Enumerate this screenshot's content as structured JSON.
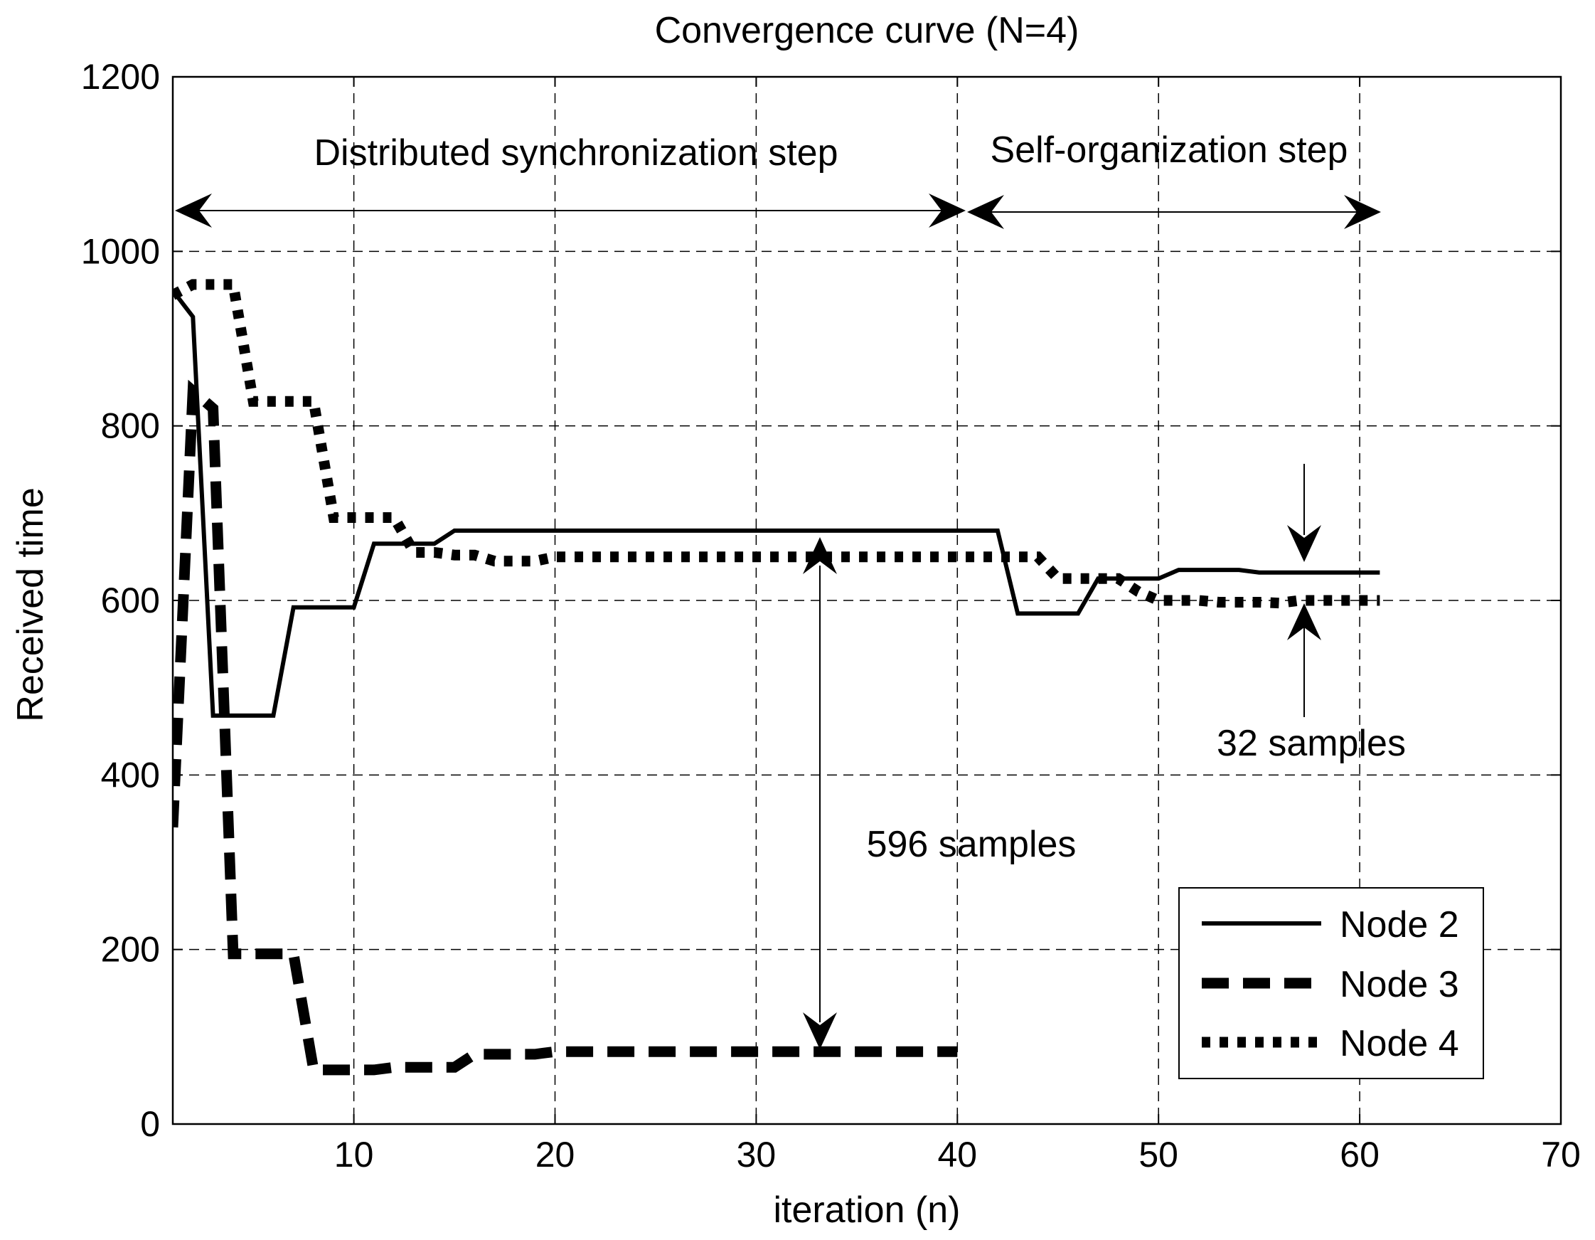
{
  "chart_data": {
    "type": "line",
    "title": "Convergence curve (N=4)",
    "xlabel": "iteration (n)",
    "ylabel": "Received time",
    "xlim": [
      1,
      70
    ],
    "ylim": [
      0,
      1200
    ],
    "xticks": [
      10,
      20,
      30,
      40,
      50,
      60,
      70
    ],
    "yticks": [
      0,
      200,
      400,
      600,
      800,
      1000,
      1200
    ],
    "grid": true,
    "legend_position": "bottom-right",
    "series": [
      {
        "name": "Node 2",
        "style": "solid",
        "x": [
          1,
          2,
          3,
          4,
          5,
          6,
          7,
          8,
          9,
          10,
          11,
          12,
          13,
          14,
          15,
          20,
          25,
          30,
          35,
          40,
          42,
          43,
          44,
          45,
          46,
          47,
          48,
          49,
          50,
          51,
          52,
          53,
          54,
          55,
          56,
          57,
          58,
          59,
          60,
          61
        ],
        "y": [
          955,
          925,
          468,
          468,
          468,
          468,
          592,
          592,
          592,
          592,
          665,
          665,
          665,
          665,
          680,
          680,
          680,
          680,
          680,
          680,
          680,
          585,
          585,
          585,
          585,
          625,
          625,
          625,
          625,
          635,
          635,
          635,
          635,
          632,
          632,
          632,
          632,
          632,
          632,
          632
        ]
      },
      {
        "name": "Node 3",
        "style": "dashed",
        "x": [
          1,
          2,
          3,
          4,
          5,
          6,
          7,
          8,
          9,
          10,
          11,
          12,
          13,
          14,
          15,
          16,
          17,
          18,
          19,
          20,
          25,
          30,
          35,
          40
        ],
        "y": [
          340,
          840,
          820,
          195,
          195,
          195,
          195,
          62,
          62,
          62,
          62,
          65,
          65,
          65,
          65,
          80,
          80,
          80,
          80,
          83,
          83,
          83,
          83,
          83
        ]
      },
      {
        "name": "Node 4",
        "style": "dotted",
        "x": [
          1,
          2,
          3,
          4,
          5,
          6,
          7,
          8,
          9,
          10,
          11,
          12,
          13,
          14,
          15,
          16,
          17,
          18,
          19,
          20,
          25,
          30,
          35,
          40,
          41,
          42,
          43,
          44,
          45,
          46,
          47,
          48,
          49,
          50,
          51,
          52,
          53,
          54,
          55,
          56,
          57,
          58,
          59,
          60,
          61
        ],
        "y": [
          950,
          962,
          962,
          962,
          828,
          828,
          828,
          828,
          695,
          695,
          695,
          695,
          655,
          655,
          652,
          652,
          645,
          645,
          645,
          650,
          650,
          650,
          650,
          650,
          650,
          650,
          650,
          650,
          625,
          625,
          625,
          625,
          610,
          600,
          600,
          600,
          598,
          598,
          598,
          597,
          600,
          600,
          600,
          600,
          600
        ]
      }
    ],
    "annotations": {
      "sync_step": "Distributed synchronization step",
      "self_org_step": "Self-organization step",
      "samples_596": "596 samples",
      "samples_32": "32 samples"
    }
  }
}
